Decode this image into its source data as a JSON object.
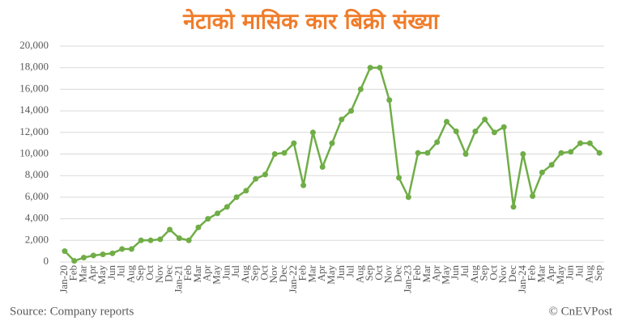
{
  "chart_data": {
    "type": "line",
    "title": "नेटाको मासिक कार बिक्री संख्या",
    "source": "Source: Company reports",
    "credit": "© CnEVPost",
    "categories": [
      "Jan-20",
      "Feb",
      "Mar",
      "Apr",
      "May",
      "Jun",
      "Jul",
      "Aug",
      "Sep",
      "Oct",
      "Nov",
      "Dec",
      "Jan-21",
      "Feb",
      "Mar",
      "Apr",
      "May",
      "Jun",
      "Jul",
      "Aug",
      "Sep",
      "Oct",
      "Nov",
      "Dec",
      "Jan-22",
      "Feb",
      "Mar",
      "Apr",
      "May",
      "Jun",
      "Jul",
      "Aug",
      "Sep",
      "Oct",
      "Nov",
      "Dec",
      "Jan-23",
      "Feb",
      "Mar",
      "Apr",
      "May",
      "Jun",
      "Jul",
      "Aug",
      "Sep",
      "Oct",
      "Nov",
      "Dec",
      "Jan-24",
      "Feb",
      "Mar",
      "Apr",
      "May",
      "Jun",
      "Jul",
      "Aug",
      "Sep"
    ],
    "values": [
      1000,
      100,
      400,
      600,
      700,
      800,
      1200,
      1200,
      2000,
      2000,
      2100,
      3000,
      2200,
      2000,
      3200,
      4000,
      4500,
      5100,
      6000,
      6600,
      7700,
      8100,
      10000,
      10100,
      11000,
      7100,
      12000,
      8800,
      11000,
      13200,
      14000,
      16000,
      18000,
      18000,
      15000,
      7800,
      6000,
      10100,
      10100,
      11100,
      13000,
      12100,
      10000,
      12100,
      13200,
      12000,
      12500,
      5100,
      10000,
      6100,
      8300,
      9000,
      10100,
      10200,
      11000,
      11000,
      10100
    ],
    "color": "#70ad47",
    "ylim": [
      0,
      20000
    ],
    "yticks": [
      0,
      {
        "value": 2000,
        "label": "2,000"
      },
      {
        "value": 4000,
        "label": "4,000"
      },
      {
        "value": 6000,
        "label": "6,000"
      },
      {
        "value": 8000,
        "label": "8,000"
      },
      {
        "value": 10000,
        "label": "10,000"
      },
      {
        "value": 12000,
        "label": "12,000"
      },
      {
        "value": 14000,
        "label": "14,000"
      },
      {
        "value": 16000,
        "label": "16,000"
      },
      {
        "value": 18000,
        "label": "18,000"
      },
      {
        "value": 20000,
        "label": "20,000"
      }
    ],
    "grid": true
  }
}
